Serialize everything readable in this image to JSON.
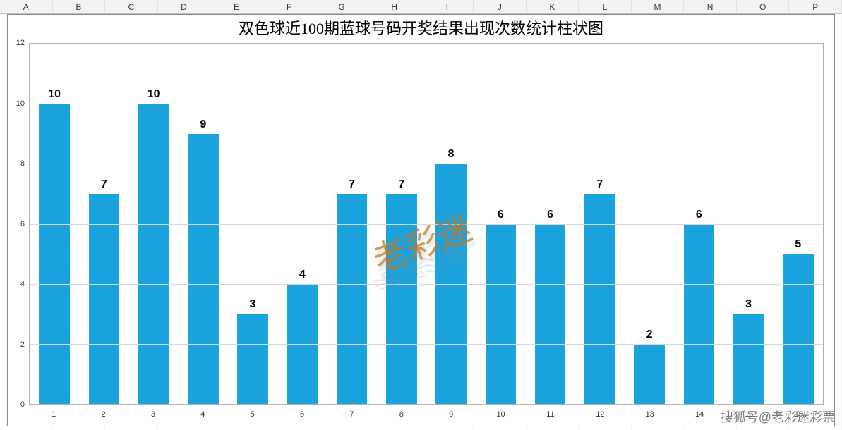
{
  "spreadsheet": {
    "columns": [
      "A",
      "B",
      "C",
      "D",
      "E",
      "F",
      "G",
      "H",
      "I",
      "J",
      "K",
      "L",
      "M",
      "N",
      "O",
      "P"
    ]
  },
  "chart": {
    "type": "bar",
    "title": "双色球近100期蓝球号码开奖结果出现次数统计柱状图",
    "title_fontsize": 22,
    "title_color": "#000000",
    "categories": [
      "1",
      "2",
      "3",
      "4",
      "5",
      "6",
      "7",
      "8",
      "9",
      "10",
      "11",
      "12",
      "13",
      "14",
      "15",
      "16"
    ],
    "values": [
      10,
      7,
      10,
      9,
      3,
      4,
      7,
      7,
      8,
      6,
      6,
      7,
      2,
      6,
      3,
      5
    ],
    "bar_color": "#1aa3dd",
    "bar_width": 0.62,
    "data_label_fontsize": 16,
    "data_label_fontweight": "bold",
    "data_label_color": "#000000",
    "ylim": [
      0,
      12
    ],
    "ytick_step": 2,
    "yticks": [
      0,
      2,
      4,
      6,
      8,
      10,
      12
    ],
    "axis_label_fontsize": 11,
    "axis_label_color": "#333333",
    "grid_color": "#d9d9d9",
    "background_color": "#ffffff",
    "plot_border_color": "#b0b0b0",
    "outer_border_color": "#888888"
  },
  "watermark_center": "老彩迷",
  "watermark_corner": "搜狐号@老彩迷彩票"
}
